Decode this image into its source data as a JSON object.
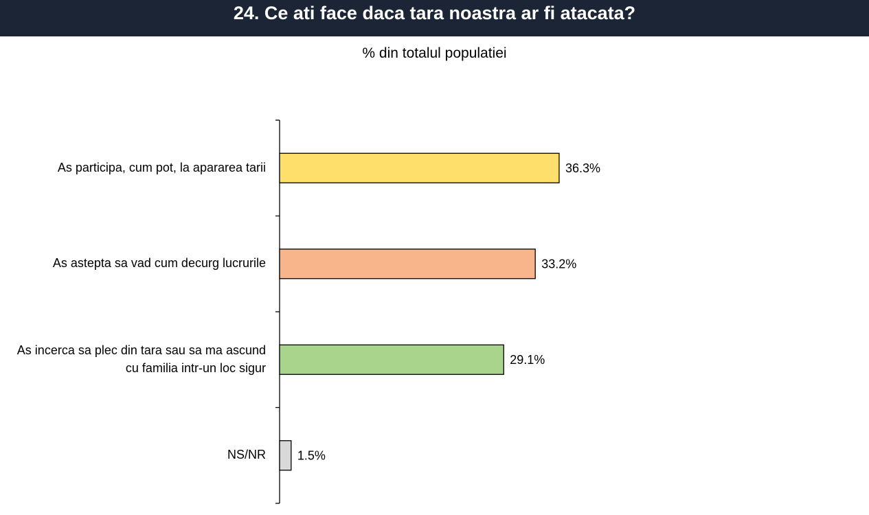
{
  "header": {
    "title": "24. Ce ati face daca tara noastra ar fi atacata?"
  },
  "chart_data": {
    "type": "bar",
    "orientation": "horizontal",
    "title": "24. Ce ati face daca tara noastra ar fi atacata?",
    "subtitle": "% din totalul populatiei",
    "categories": [
      "As participa, cum pot, la apararea tarii",
      "As astepta sa vad cum decurg lucrurile",
      "As incerca sa plec din tara sau sa ma ascund cu familia intr-un loc sigur",
      "NS/NR"
    ],
    "values": [
      36.3,
      33.2,
      29.1,
      1.5
    ],
    "data_labels": [
      "36.3%",
      "33.2%",
      "29.1%",
      "1.5%"
    ],
    "colors": [
      "#ffdf6b",
      "#f8b48a",
      "#a9d48c",
      "#d9d9d9"
    ],
    "bar_outline_color": "#000000",
    "xlim": [
      0,
      76
    ],
    "grid": false,
    "x_axis_visible": false
  }
}
